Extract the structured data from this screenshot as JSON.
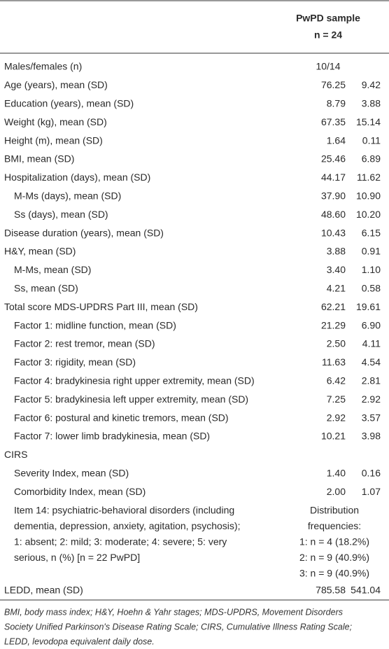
{
  "header": {
    "title": "PwPD sample",
    "n_label": "n = 24"
  },
  "table": {
    "rows": [
      {
        "label": "Males/females (n)",
        "value": "10/14"
      },
      {
        "label": "Age (years), mean (SD)",
        "mean": "76.25",
        "sd": "9.42"
      },
      {
        "label": "Education (years), mean (SD)",
        "mean": "8.79",
        "sd": "3.88"
      },
      {
        "label": "Weight (kg), mean (SD)",
        "mean": "67.35",
        "sd": "15.14"
      },
      {
        "label": "Height (m), mean (SD)",
        "mean": "1.64",
        "sd": "0.11"
      },
      {
        "label": "BMI, mean (SD)",
        "mean": "25.46",
        "sd": "6.89"
      },
      {
        "label": "Hospitalization (days), mean (SD)",
        "mean": "44.17",
        "sd": "11.62",
        "subrows": [
          {
            "label": "M-Ms (days), mean (SD)",
            "mean": "37.90",
            "sd": "10.90"
          },
          {
            "label": "Ss (days), mean (SD)",
            "mean": "48.60",
            "sd": "10.20"
          }
        ]
      },
      {
        "label": "Disease duration (years), mean (SD)",
        "mean": "10.43",
        "sd": "6.15"
      },
      {
        "label": "H&Y, mean (SD)",
        "mean": "3.88",
        "sd": "0.91",
        "subrows": [
          {
            "label": "M-Ms, mean (SD)",
            "mean": "3.40",
            "sd": "1.10"
          },
          {
            "label": "Ss, mean (SD)",
            "mean": "4.21",
            "sd": "0.58"
          }
        ]
      },
      {
        "label": "Total score MDS-UPDRS Part III, mean (SD)",
        "mean": "62.21",
        "sd": "19.61",
        "subrows": [
          {
            "label": "Factor 1: midline function, mean (SD)",
            "mean": "21.29",
            "sd": "6.90"
          },
          {
            "label": "Factor 2: rest tremor, mean (SD)",
            "mean": "2.50",
            "sd": "4.11"
          },
          {
            "label": "Factor 3: rigidity, mean (SD)",
            "mean": "11.63",
            "sd": "4.54"
          },
          {
            "label": "Factor 4: bradykinesia right upper extremity, mean (SD)",
            "mean": "6.42",
            "sd": "2.81"
          },
          {
            "label": "Factor 5: bradykinesia left upper extremity, mean (SD)",
            "mean": "7.25",
            "sd": "2.92"
          },
          {
            "label": "Factor 6: postural and kinetic tremors, mean (SD)",
            "mean": "2.92",
            "sd": "3.57"
          },
          {
            "label": "Factor 7: lower limb bradykinesia, mean (SD)",
            "mean": "10.21",
            "sd": "3.98"
          }
        ]
      },
      {
        "label": "CIRS",
        "subrows": [
          {
            "label": "Severity Index, mean (SD)",
            "mean": "1.40",
            "sd": "0.16"
          },
          {
            "label": "Comorbidity Index, mean (SD)",
            "mean": "2.00",
            "sd": "1.07"
          },
          {
            "label_lines": [
              "Item 14: psychiatric-behavioral disorders (including",
              "dementia, depression, anxiety, agitation, psychosis);",
              "1: absent; 2: mild; 3: moderate; 4: severe; 5: very",
              "serious, n (%) [n = 22 PwPD]"
            ],
            "value_lines": [
              "Distribution",
              "frequencies:",
              "1: n = 4 (18.2%)",
              "2: n = 9 (40.9%)",
              "3: n = 9 (40.9%)"
            ]
          }
        ]
      },
      {
        "label": "LEDD, mean (SD)",
        "mean": "785.58",
        "sd": "541.04"
      }
    ]
  },
  "footnote": [
    "BMI, body mass index; H&Y, Hoehn & Yahr stages; MDS-UPDRS, Movement Disorders",
    "Society Unified Parkinson's Disease Rating Scale; CIRS, Cumulative Illness Rating Scale;",
    "LEDD, levodopa equivalent daily dose."
  ]
}
